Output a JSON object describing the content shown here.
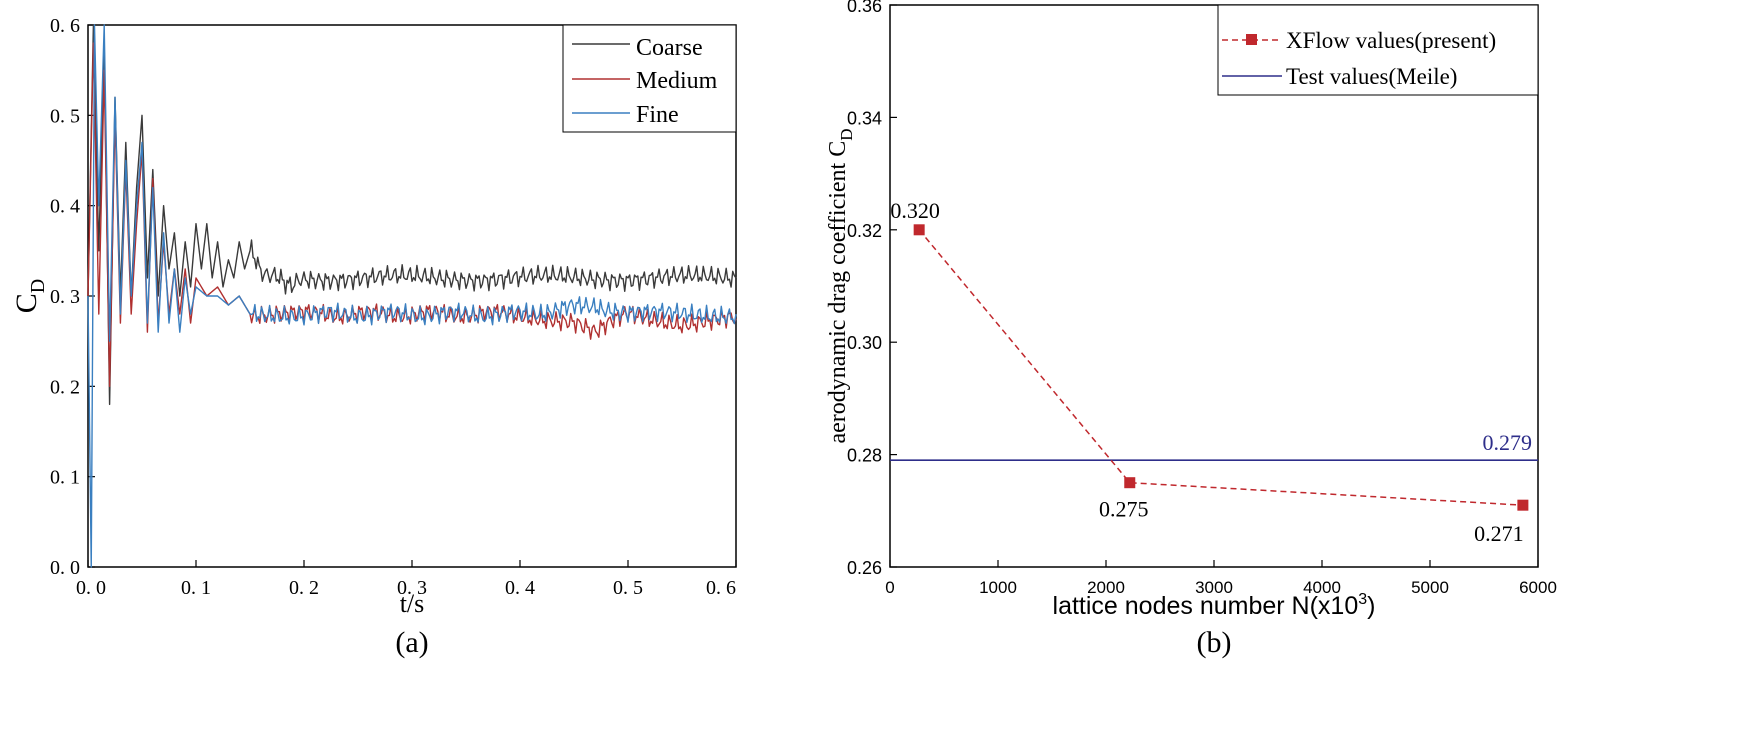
{
  "chart_data": [
    {
      "panel_label": "(a)",
      "type": "line",
      "title": "",
      "xlabel": "t/s",
      "ylabel": "C",
      "ylabel_sub": "D",
      "xlim": [
        0.0,
        0.6
      ],
      "ylim": [
        0.0,
        0.6
      ],
      "xticks": [
        0.0,
        0.1,
        0.2,
        0.3,
        0.4,
        0.5,
        0.6
      ],
      "xtick_labels": [
        "0. 0",
        "0. 1",
        "0. 2",
        "0. 3",
        "0. 4",
        "0. 5",
        "0. 6"
      ],
      "yticks": [
        0.0,
        0.1,
        0.2,
        0.3,
        0.4,
        0.5,
        0.6
      ],
      "ytick_labels": [
        "0. 0",
        "0. 1",
        "0. 2",
        "0. 3",
        "0. 4",
        "0. 5",
        "0. 6"
      ],
      "grid": false,
      "legend_position": "top-right",
      "series": [
        {
          "name": "Coarse",
          "color": "#3a3a3a",
          "x": [
            0.0,
            0.005,
            0.01,
            0.015,
            0.02,
            0.025,
            0.03,
            0.035,
            0.04,
            0.045,
            0.05,
            0.055,
            0.06,
            0.065,
            0.07,
            0.075,
            0.08,
            0.085,
            0.09,
            0.095,
            0.1,
            0.105,
            0.11,
            0.115,
            0.12,
            0.125,
            0.13,
            0.135,
            0.14,
            0.145,
            0.15,
            0.16,
            0.17,
            0.18,
            0.19,
            0.2,
            0.25,
            0.3,
            0.35,
            0.4,
            0.45,
            0.5,
            0.55,
            0.6
          ],
          "y": [
            0.3,
            0.6,
            0.35,
            0.58,
            0.18,
            0.52,
            0.3,
            0.47,
            0.3,
            0.42,
            0.5,
            0.32,
            0.44,
            0.3,
            0.4,
            0.33,
            0.37,
            0.3,
            0.36,
            0.31,
            0.38,
            0.33,
            0.38,
            0.32,
            0.36,
            0.31,
            0.34,
            0.32,
            0.36,
            0.33,
            0.35,
            0.33,
            0.32,
            0.32,
            0.31,
            0.32,
            0.32,
            0.32,
            0.32,
            0.32,
            0.32,
            0.32,
            0.32,
            0.32
          ]
        },
        {
          "name": "Medium",
          "color": "#b03030",
          "x": [
            0.0,
            0.005,
            0.01,
            0.015,
            0.02,
            0.025,
            0.03,
            0.035,
            0.04,
            0.045,
            0.05,
            0.055,
            0.06,
            0.065,
            0.07,
            0.075,
            0.08,
            0.085,
            0.09,
            0.095,
            0.1,
            0.11,
            0.12,
            0.13,
            0.14,
            0.15,
            0.2,
            0.3,
            0.4,
            0.45,
            0.47,
            0.5,
            0.55,
            0.6
          ],
          "y": [
            0.3,
            0.58,
            0.28,
            0.55,
            0.2,
            0.5,
            0.27,
            0.44,
            0.28,
            0.38,
            0.46,
            0.26,
            0.43,
            0.27,
            0.36,
            0.28,
            0.33,
            0.28,
            0.33,
            0.27,
            0.32,
            0.3,
            0.31,
            0.29,
            0.3,
            0.28,
            0.28,
            0.28,
            0.28,
            0.27,
            0.26,
            0.28,
            0.27,
            0.275
          ]
        },
        {
          "name": "Fine",
          "color": "#3a7fc0",
          "x": [
            0.0,
            0.003,
            0.006,
            0.01,
            0.015,
            0.02,
            0.025,
            0.03,
            0.035,
            0.04,
            0.045,
            0.05,
            0.055,
            0.06,
            0.065,
            0.07,
            0.075,
            0.08,
            0.085,
            0.09,
            0.095,
            0.1,
            0.11,
            0.12,
            0.13,
            0.14,
            0.15,
            0.2,
            0.3,
            0.4,
            0.47,
            0.5,
            0.55,
            0.6
          ],
          "y": [
            0.3,
            0.0,
            0.6,
            0.4,
            0.6,
            0.25,
            0.52,
            0.28,
            0.45,
            0.3,
            0.4,
            0.47,
            0.27,
            0.42,
            0.26,
            0.37,
            0.27,
            0.33,
            0.26,
            0.32,
            0.28,
            0.31,
            0.3,
            0.3,
            0.29,
            0.3,
            0.28,
            0.28,
            0.28,
            0.28,
            0.29,
            0.28,
            0.28,
            0.28
          ]
        }
      ]
    },
    {
      "panel_label": "(b)",
      "type": "line",
      "title": "",
      "xlabel": "lattice nodes number N(x10",
      "xlabel_sup": "3",
      "xlabel_end": ")",
      "ylabel": "aerodynamic drag coefficient C",
      "ylabel_sub": "D",
      "xlim": [
        0,
        6000
      ],
      "ylim": [
        0.26,
        0.36
      ],
      "xticks": [
        0,
        1000,
        2000,
        3000,
        4000,
        5000,
        6000
      ],
      "xtick_labels": [
        "0",
        "1000",
        "2000",
        "3000",
        "4000",
        "5000",
        "6000"
      ],
      "yticks": [
        0.26,
        0.28,
        0.3,
        0.32,
        0.34,
        0.36
      ],
      "ytick_labels": [
        "0.26",
        "0.28",
        "0.30",
        "0.32",
        "0.34",
        "0.36"
      ],
      "grid": false,
      "legend_position": "top-right",
      "series": [
        {
          "name": "XFlow values(present)",
          "color": "#c0282d",
          "style": "dashed-square-markers",
          "x": [
            270,
            2220,
            5860
          ],
          "y": [
            0.32,
            0.275,
            0.271
          ],
          "labels": [
            "0.320",
            "0.275",
            "0.271"
          ]
        },
        {
          "name": "Test values(Meile)",
          "color": "#2e2e8a",
          "style": "solid-horizontal",
          "value": 0.279,
          "label": "0.279"
        }
      ]
    }
  ]
}
